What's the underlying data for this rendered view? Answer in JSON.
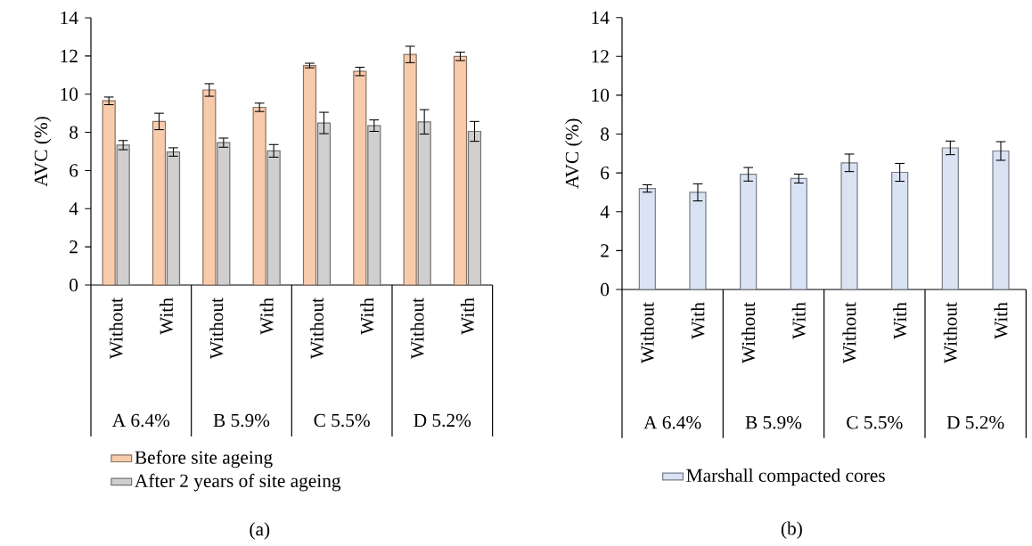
{
  "chart_data": [
    {
      "type": "bar",
      "title": "(a)",
      "ylabel": "AVC (%)",
      "categories": [
        "Without",
        "With",
        "Without",
        "With",
        "Without",
        "With",
        "Without",
        "With"
      ],
      "annotations": [
        "A 6.4%",
        "B 5.9%",
        "C 5.5%",
        "D 5.2%"
      ],
      "series": [
        {
          "name": "Before site ageing",
          "color": "#f8cbad",
          "values": [
            9.65,
            8.57,
            10.22,
            9.31,
            11.5,
            11.19,
            12.08,
            11.98
          ],
          "errors": [
            0.2,
            0.43,
            0.33,
            0.22,
            0.12,
            0.22,
            0.43,
            0.22
          ]
        },
        {
          "name": "After 2 years of site ageing",
          "color": "#d0cece",
          "values": [
            7.33,
            6.97,
            7.46,
            7.03,
            8.49,
            8.35,
            8.55,
            8.05
          ],
          "errors": [
            0.24,
            0.22,
            0.24,
            0.33,
            0.56,
            0.3,
            0.64,
            0.52
          ]
        }
      ],
      "ylim": [
        0,
        14
      ],
      "yticks": [
        0,
        2,
        4,
        6,
        8,
        10,
        12,
        14
      ],
      "legend": "bottom"
    },
    {
      "type": "bar",
      "title": "(b)",
      "ylabel": "AVC (%)",
      "categories": [
        "Without",
        "With",
        "Without",
        "With",
        "Without",
        "With",
        "Without",
        "With"
      ],
      "annotations": [
        "A 6.4%",
        "B 5.9%",
        "C 5.5%",
        "D 5.2%"
      ],
      "series": [
        {
          "name": "Marshall compacted cores",
          "color": "#dae3f3",
          "values": [
            5.2,
            5.0,
            5.93,
            5.71,
            6.52,
            6.03,
            7.29,
            7.13
          ],
          "errors": [
            0.19,
            0.44,
            0.35,
            0.23,
            0.45,
            0.46,
            0.35,
            0.48
          ]
        }
      ],
      "ylim": [
        0,
        14
      ],
      "yticks": [
        0,
        2,
        4,
        6,
        8,
        10,
        12,
        14
      ],
      "legend": "bottom"
    }
  ]
}
